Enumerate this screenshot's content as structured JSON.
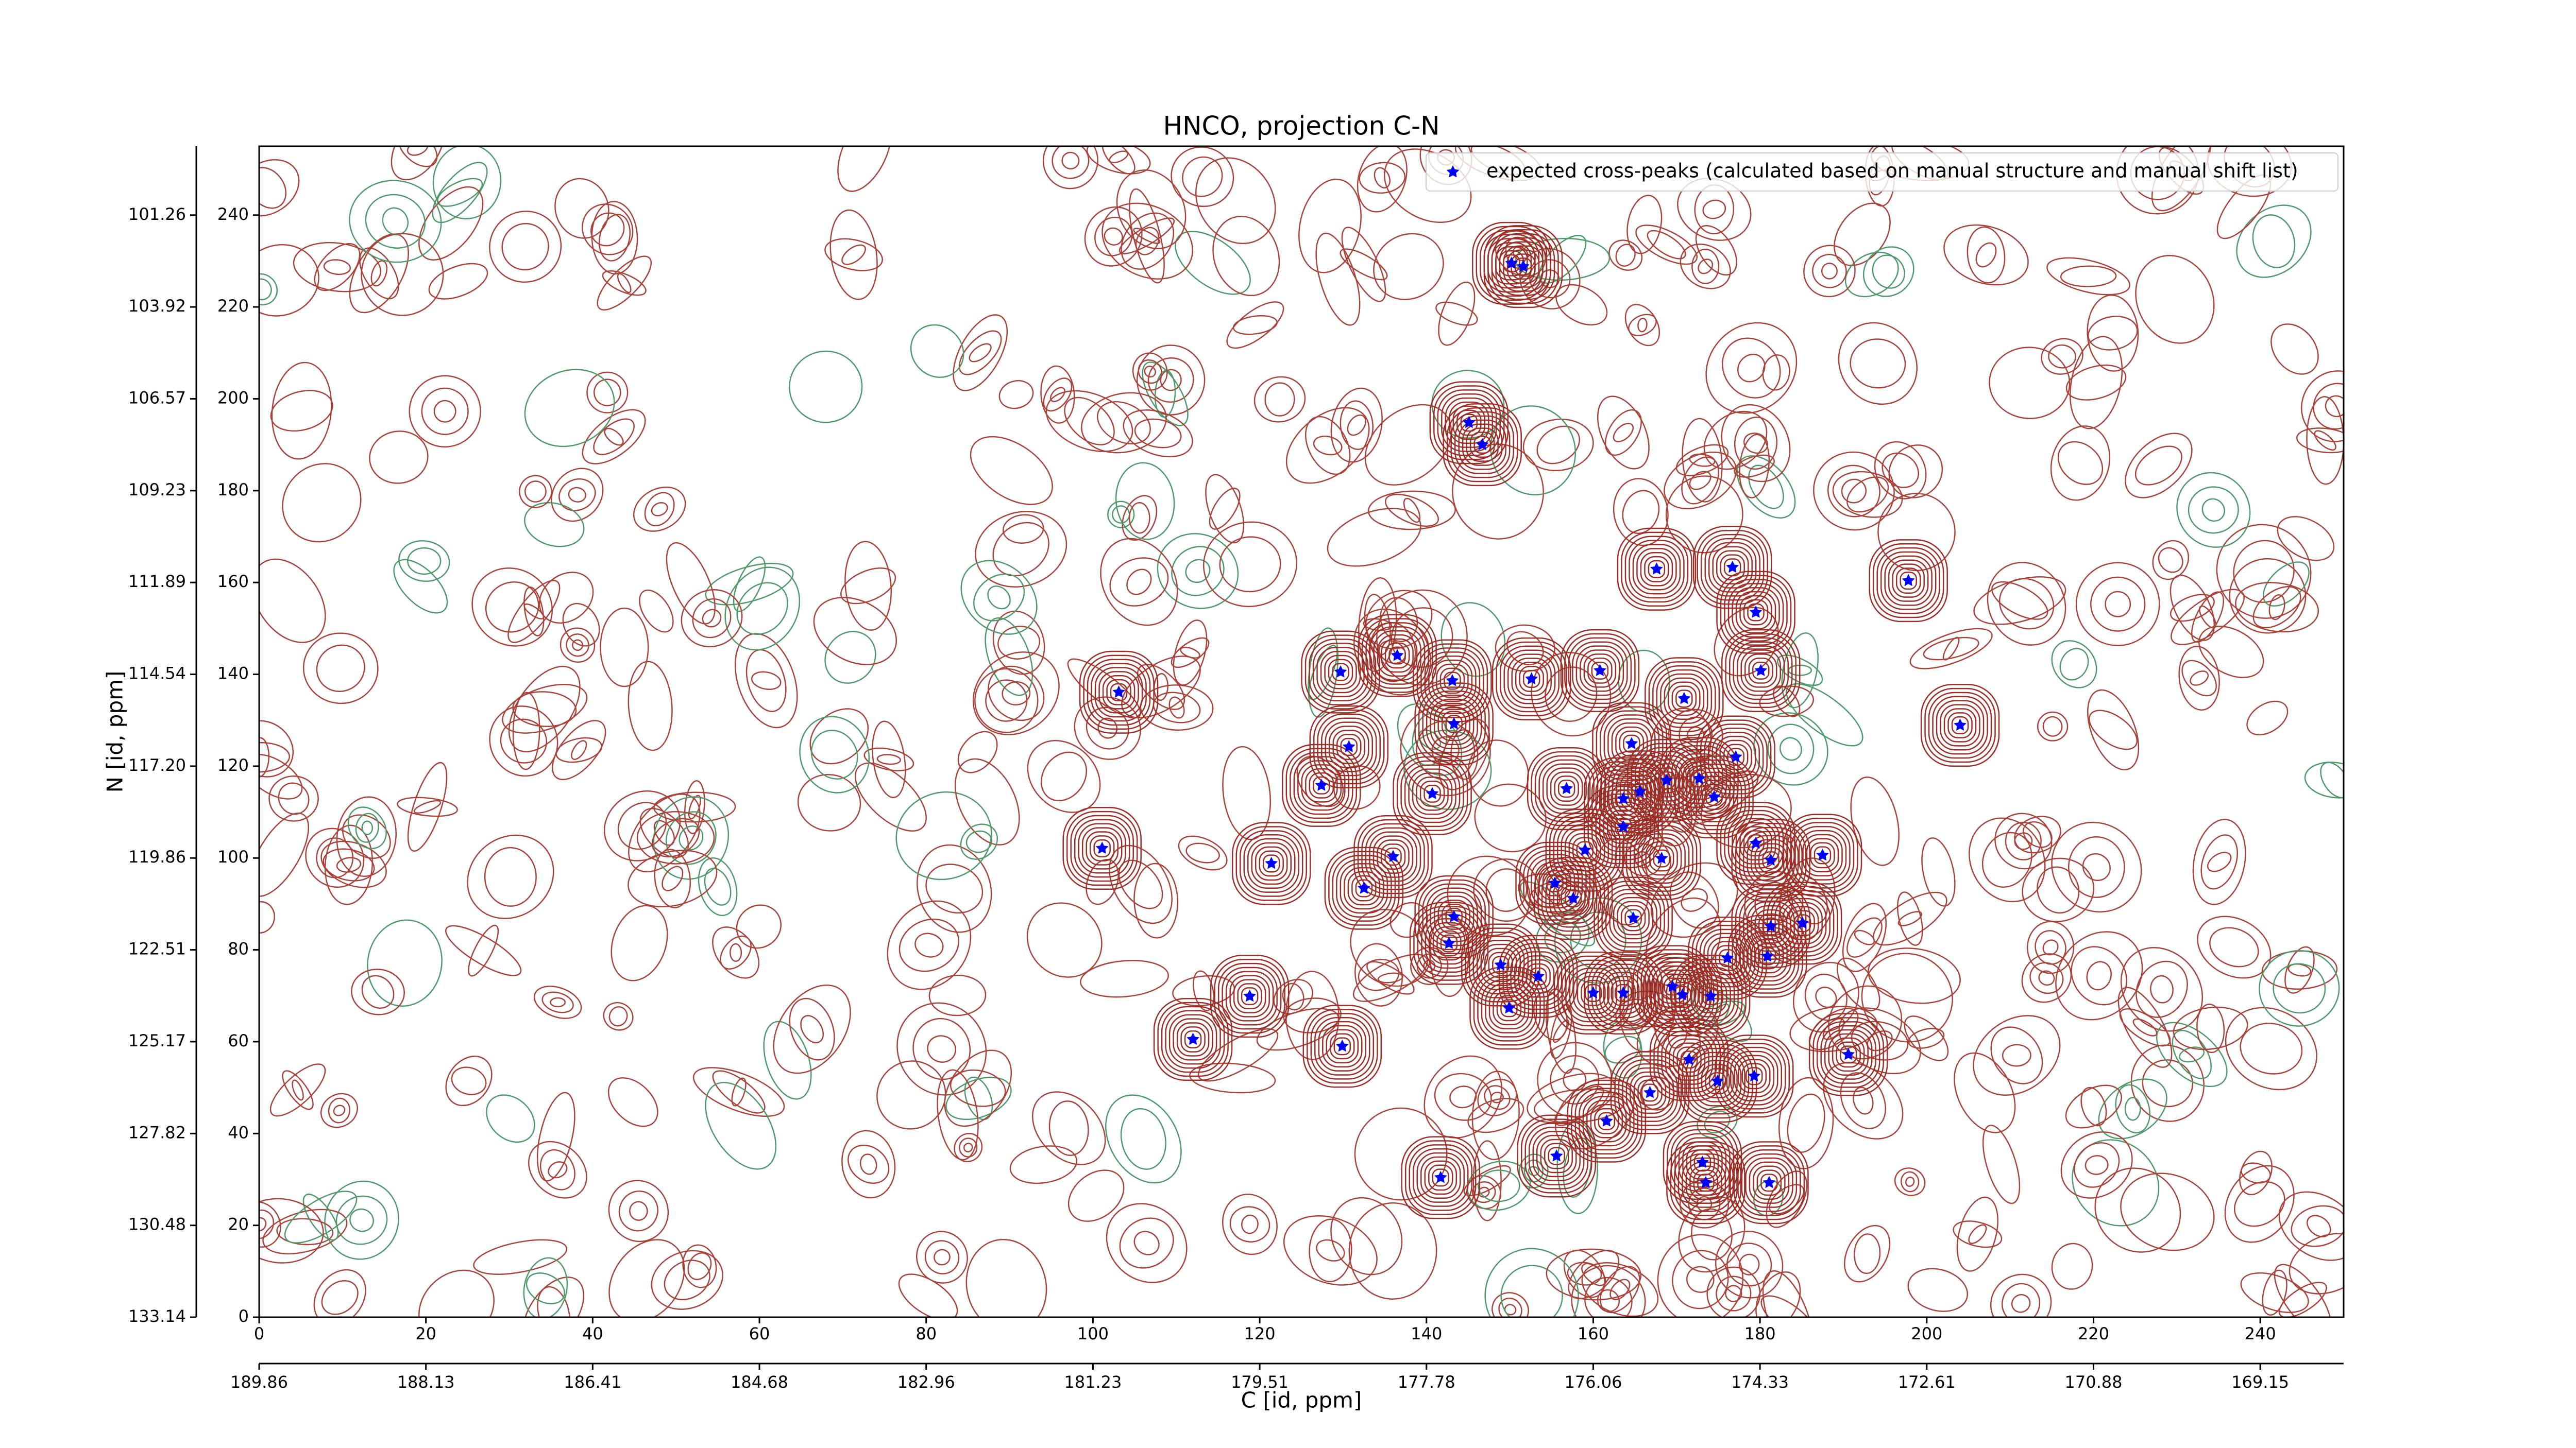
{
  "chart_data": {
    "type": "scatter",
    "title": "HNCO, projection C-N",
    "xlabel": "C [id, ppm]",
    "ylabel": "N [id, ppm]",
    "legend": "upper right",
    "series": [
      {
        "name": "expected cross-peaks (calculated based on manual structure and manual shift list)",
        "color": "#0000ff",
        "x": [
          150.2,
          151.6,
          145.1,
          146.7,
          167.6,
          176.7,
          197.8,
          179.5,
          136.5,
          129.7,
          143.1,
          152.6,
          160.8,
          180.1,
          103.1,
          170.9,
          143.3,
          204.0,
          130.7,
          164.6,
          177.1,
          172.7,
          127.4,
          156.8,
          140.7,
          165.6,
          163.6,
          168.8,
          174.5,
          163.6,
          101.1,
          159.0,
          179.5,
          136.0,
          187.5,
          121.4,
          168.2,
          181.3,
          132.5,
          155.4,
          157.6,
          143.3,
          164.8,
          185.1,
          181.3,
          142.7,
          148.9,
          176.1,
          180.9,
          153.4,
          169.5,
          160.0,
          163.6,
          170.7,
          174.1,
          118.8,
          149.9,
          112.0,
          129.9,
          190.6,
          171.5,
          179.3,
          174.9,
          166.8,
          161.6,
          155.6,
          173.1,
          141.7,
          173.5,
          181.1
        ],
        "values": [
          229.5,
          228.8,
          194.8,
          190.0,
          162.9,
          163.3,
          160.4,
          153.5,
          144.1,
          140.5,
          138.6,
          139.0,
          140.8,
          140.8,
          136.1,
          134.7,
          129.2,
          128.9,
          124.2,
          124.9,
          122.0,
          117.3,
          115.8,
          115.1,
          114.0,
          114.4,
          112.9,
          116.9,
          113.3,
          106.8,
          102.1,
          101.7,
          103.2,
          100.3,
          100.6,
          98.8,
          99.9,
          99.5,
          93.4,
          94.5,
          91.2,
          87.2,
          86.9,
          85.8,
          85.1,
          81.4,
          76.7,
          78.2,
          78.6,
          74.2,
          72.0,
          70.6,
          70.6,
          70.2,
          69.9,
          69.9,
          67.3,
          60.5,
          59.0,
          57.2,
          56.1,
          52.5,
          51.4,
          48.9,
          42.7,
          35.1,
          33.7,
          30.4,
          29.3,
          29.3
        ]
      }
    ],
    "xlim": [
      0,
      250
    ],
    "ylim": [
      0,
      255
    ],
    "xticks": [
      0,
      20,
      40,
      60,
      80,
      100,
      120,
      140,
      160,
      180,
      200,
      220,
      240
    ],
    "yticks": [
      0,
      20,
      40,
      60,
      80,
      100,
      120,
      140,
      160,
      180,
      200,
      220,
      240
    ],
    "x_ppm_ticks": [
      {
        "value": 0,
        "label": "189.86"
      },
      {
        "value": 20,
        "label": "188.13"
      },
      {
        "value": 40,
        "label": "186.41"
      },
      {
        "value": 60,
        "label": "184.68"
      },
      {
        "value": 80,
        "label": "182.96"
      },
      {
        "value": 100,
        "label": "181.23"
      },
      {
        "value": 120,
        "label": "179.51"
      },
      {
        "value": 140,
        "label": "177.78"
      },
      {
        "value": 160,
        "label": "176.06"
      },
      {
        "value": 180,
        "label": "174.33"
      },
      {
        "value": 200,
        "label": "172.61"
      },
      {
        "value": 220,
        "label": "170.88"
      },
      {
        "value": 240,
        "label": "169.15"
      }
    ],
    "y_ppm_ticks": [
      {
        "value": 0,
        "label": "133.14"
      },
      {
        "value": 20,
        "label": "130.48"
      },
      {
        "value": 40,
        "label": "127.82"
      },
      {
        "value": 60,
        "label": "125.17"
      },
      {
        "value": 80,
        "label": "122.51"
      },
      {
        "value": 100,
        "label": "119.86"
      },
      {
        "value": 120,
        "label": "117.20"
      },
      {
        "value": 140,
        "label": "114.54"
      },
      {
        "value": 160,
        "label": "111.89"
      },
      {
        "value": 180,
        "label": "109.23"
      },
      {
        "value": 200,
        "label": "106.57"
      },
      {
        "value": 220,
        "label": "103.92"
      },
      {
        "value": 240,
        "label": "101.26"
      }
    ]
  }
}
